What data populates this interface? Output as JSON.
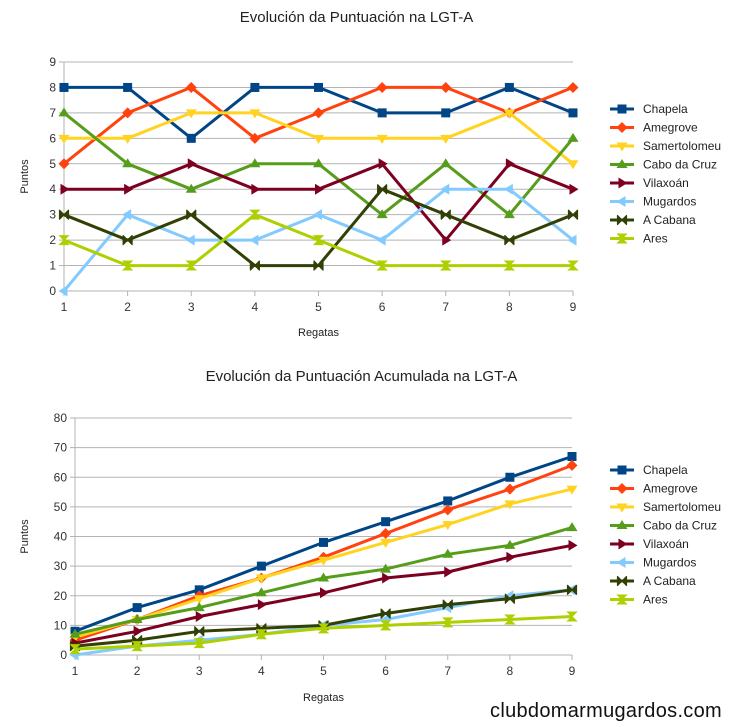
{
  "colors": {
    "Chapela": "#004586",
    "Amegrove": "#ff420e",
    "Samertolomeu": "#ffd320",
    "Cabo da Cruz": "#579d1c",
    "Vilaxoán": "#7e0021",
    "Mugardos": "#83caff",
    "A Cabana": "#314004",
    "Ares": "#aecf00"
  },
  "markers": {
    "Chapela": "square",
    "Amegrove": "diamond",
    "Samertolomeu": "triangle-down",
    "Cabo da Cruz": "triangle-up",
    "Vilaxoán": "triangle-right",
    "Mugardos": "triangle-left",
    "A Cabana": "bowtie",
    "Ares": "hourglass"
  },
  "chart_data": [
    {
      "type": "line",
      "title": "Evolución da Puntuación na LGT-A",
      "xlabel": "Regatas",
      "ylabel": "Puntos",
      "x": [
        1,
        2,
        3,
        4,
        5,
        6,
        7,
        8,
        9
      ],
      "ylim": [
        0,
        9
      ],
      "yticks": [
        0,
        1,
        2,
        3,
        4,
        5,
        6,
        7,
        8,
        9
      ],
      "grid": "horizontal",
      "legend": "right",
      "series": [
        {
          "name": "Chapela",
          "values": [
            8,
            8,
            6,
            8,
            8,
            7,
            7,
            8,
            7
          ]
        },
        {
          "name": "Amegrove",
          "values": [
            5,
            7,
            8,
            6,
            7,
            8,
            8,
            7,
            8
          ]
        },
        {
          "name": "Samertolomeu",
          "values": [
            6,
            6,
            7,
            7,
            6,
            6,
            6,
            7,
            5
          ]
        },
        {
          "name": "Cabo da Cruz",
          "values": [
            7,
            5,
            4,
            5,
            5,
            3,
            5,
            3,
            6
          ]
        },
        {
          "name": "Vilaxoán",
          "values": [
            4,
            4,
            5,
            4,
            4,
            5,
            2,
            5,
            4
          ]
        },
        {
          "name": "Mugardos",
          "values": [
            0,
            3,
            2,
            2,
            3,
            2,
            4,
            4,
            2
          ]
        },
        {
          "name": "A Cabana",
          "values": [
            3,
            2,
            3,
            1,
            1,
            4,
            3,
            2,
            3
          ]
        },
        {
          "name": "Ares",
          "values": [
            2,
            1,
            1,
            3,
            2,
            1,
            1,
            1,
            1
          ]
        }
      ]
    },
    {
      "type": "line",
      "title": "Evolución da Puntuación Acumulada na LGT-A",
      "xlabel": "Regatas",
      "ylabel": "Puntos",
      "x": [
        1,
        2,
        3,
        4,
        5,
        6,
        7,
        8,
        9
      ],
      "ylim": [
        0,
        80
      ],
      "yticks": [
        0,
        10,
        20,
        30,
        40,
        50,
        60,
        70,
        80
      ],
      "grid": "horizontal",
      "legend": "right",
      "series": [
        {
          "name": "Chapela",
          "values": [
            8,
            16,
            22,
            30,
            38,
            45,
            52,
            60,
            67
          ]
        },
        {
          "name": "Amegrove",
          "values": [
            5,
            12,
            20,
            26,
            33,
            41,
            49,
            56,
            64
          ]
        },
        {
          "name": "Samertolomeu",
          "values": [
            6,
            12,
            19,
            26,
            32,
            38,
            44,
            51,
            56
          ]
        },
        {
          "name": "Cabo da Cruz",
          "values": [
            7,
            12,
            16,
            21,
            26,
            29,
            34,
            37,
            43
          ]
        },
        {
          "name": "Vilaxoán",
          "values": [
            4,
            8,
            13,
            17,
            21,
            26,
            28,
            33,
            37
          ]
        },
        {
          "name": "Mugardos",
          "values": [
            0,
            3,
            5,
            7,
            10,
            12,
            16,
            20,
            22
          ]
        },
        {
          "name": "A Cabana",
          "values": [
            3,
            5,
            8,
            9,
            10,
            14,
            17,
            19,
            22
          ]
        },
        {
          "name": "Ares",
          "values": [
            2,
            3,
            4,
            7,
            9,
            10,
            11,
            12,
            13
          ]
        }
      ]
    }
  ],
  "footer": {
    "watermark": "clubdomarmugardos.com"
  }
}
